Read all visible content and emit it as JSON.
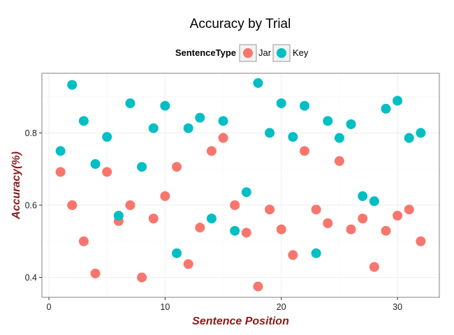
{
  "chart_data": {
    "type": "scatter",
    "title": "Accuracy by Trial",
    "xlabel": "Sentence Position",
    "ylabel": "Accuracy(%)",
    "xlim": [
      -0.6,
      33.6
    ],
    "ylim": [
      0.345,
      0.965
    ],
    "x_ticks": [
      0,
      10,
      20,
      30
    ],
    "y_ticks": [
      0.4,
      0.6,
      0.8
    ],
    "x_tick_labels": [
      "0",
      "10",
      "20",
      "30"
    ],
    "y_tick_labels": [
      "0.4",
      "0.6",
      "0.8"
    ],
    "grid": true,
    "legend": {
      "title": "SentenceType",
      "placement": "top",
      "entries": [
        "Jar",
        "Key"
      ]
    },
    "colors": {
      "Jar": "#f8766d",
      "Key": "#00bfc4"
    },
    "axis_title_color": "#8b1a1a",
    "series": [
      {
        "name": "Jar",
        "x": [
          1,
          2,
          3,
          4,
          5,
          6,
          7,
          8,
          9,
          10,
          11,
          12,
          13,
          14,
          15,
          16,
          17,
          18,
          19,
          20,
          21,
          22,
          23,
          24,
          25,
          26,
          27,
          28,
          29,
          30,
          31,
          32
        ],
        "y": [
          0.692,
          0.6,
          0.5,
          0.411,
          0.692,
          0.556,
          0.6,
          0.4,
          0.563,
          0.625,
          0.706,
          0.437,
          0.538,
          0.75,
          0.786,
          0.6,
          0.524,
          0.375,
          0.588,
          0.533,
          0.462,
          0.75,
          0.588,
          0.55,
          0.722,
          0.533,
          0.563,
          0.429,
          0.529,
          0.571,
          0.588,
          0.5
        ]
      },
      {
        "name": "Key",
        "x": [
          1,
          2,
          3,
          4,
          5,
          6,
          7,
          8,
          9,
          10,
          11,
          12,
          13,
          14,
          15,
          16,
          17,
          18,
          19,
          20,
          21,
          22,
          23,
          24,
          25,
          26,
          27,
          28,
          29,
          30,
          31,
          32
        ],
        "y": [
          0.75,
          0.933,
          0.833,
          0.714,
          0.789,
          0.571,
          0.882,
          0.706,
          0.813,
          0.875,
          0.467,
          0.813,
          0.842,
          0.563,
          0.833,
          0.529,
          0.636,
          0.938,
          0.8,
          0.882,
          0.789,
          0.875,
          0.467,
          0.833,
          0.786,
          0.824,
          0.625,
          0.611,
          0.867,
          0.889,
          0.786,
          0.8
        ]
      }
    ]
  }
}
